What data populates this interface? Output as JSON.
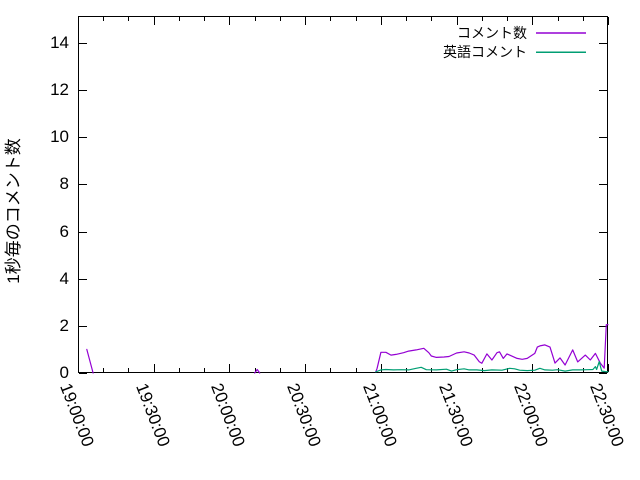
{
  "chart_data": {
    "type": "line",
    "title": "",
    "xlabel": "",
    "ylabel": "1秒毎のコメント数",
    "x_ticks": [
      "19:00:00",
      "19:30:00",
      "20:00:00",
      "20:30:00",
      "21:00:00",
      "21:30:00",
      "22:00:00",
      "22:30:00"
    ],
    "y_ticks": [
      "0",
      "2",
      "4",
      "6",
      "8",
      "10",
      "12",
      "14"
    ],
    "xlim": [
      "19:00:00",
      "22:30:00"
    ],
    "ylim": [
      0,
      15.1
    ],
    "x_minor_tick_minutes": 10,
    "grid": false,
    "legend_position": "top-right",
    "axis_color": "#000000",
    "background_color": "#ffffff",
    "series": [
      {
        "name": "コメント数",
        "color": "#9400d3",
        "segments": [
          [
            [
              "19:03:30",
              1.0
            ],
            [
              "19:06:00",
              0.0
            ]
          ],
          [
            [
              "20:10:00",
              0.0
            ],
            [
              "20:11:00",
              0.15
            ],
            [
              "20:12:00",
              0.0
            ]
          ],
          [
            [
              "20:58:00",
              0.05
            ],
            [
              "20:58:30",
              0.2
            ],
            [
              "21:00:00",
              0.88
            ],
            [
              "21:02:00",
              0.88
            ],
            [
              "21:04:00",
              0.76
            ],
            [
              "21:06:00",
              0.79
            ],
            [
              "21:09:00",
              0.86
            ],
            [
              "21:11:00",
              0.93
            ],
            [
              "21:14:00",
              0.98
            ],
            [
              "21:17:00",
              1.05
            ],
            [
              "21:19:00",
              0.86
            ],
            [
              "21:20:00",
              0.72
            ],
            [
              "21:22:00",
              0.66
            ],
            [
              "21:25:00",
              0.68
            ],
            [
              "21:27:00",
              0.7
            ],
            [
              "21:30:00",
              0.85
            ],
            [
              "21:33:00",
              0.9
            ],
            [
              "21:35:00",
              0.85
            ],
            [
              "21:37:00",
              0.76
            ],
            [
              "21:39:00",
              0.48
            ],
            [
              "21:40:00",
              0.41
            ],
            [
              "21:42:00",
              0.81
            ],
            [
              "21:44:00",
              0.55
            ],
            [
              "21:46:00",
              0.86
            ],
            [
              "21:47:00",
              0.9
            ],
            [
              "21:48:30",
              0.62
            ],
            [
              "21:50:00",
              0.81
            ],
            [
              "21:51:00",
              0.76
            ],
            [
              "21:54:00",
              0.62
            ],
            [
              "21:56:00",
              0.58
            ],
            [
              "21:58:00",
              0.62
            ],
            [
              "22:01:00",
              0.83
            ],
            [
              "22:02:00",
              1.1
            ],
            [
              "22:03:00",
              1.15
            ],
            [
              "22:05:00",
              1.19
            ],
            [
              "22:07:00",
              1.1
            ],
            [
              "22:09:00",
              0.42
            ],
            [
              "22:11:00",
              0.64
            ],
            [
              "22:13:00",
              0.34
            ],
            [
              "22:16:00",
              0.98
            ],
            [
              "22:18:00",
              0.47
            ],
            [
              "22:21:00",
              0.76
            ],
            [
              "22:23:00",
              0.55
            ],
            [
              "22:25:00",
              0.83
            ],
            [
              "22:27:00",
              0.41
            ],
            [
              "22:28:30",
              0.21
            ],
            [
              "22:29:20",
              2.05
            ],
            [
              "22:30:00",
              2.05
            ]
          ]
        ]
      },
      {
        "name": "英語コメント",
        "color": "#009e73",
        "segments": [
          [
            [
              "20:58:00",
              0.05
            ],
            [
              "21:00:00",
              0.13
            ],
            [
              "21:02:00",
              0.15
            ],
            [
              "21:05:00",
              0.13
            ],
            [
              "21:08:00",
              0.14
            ],
            [
              "21:11:00",
              0.13
            ],
            [
              "21:14:00",
              0.2
            ],
            [
              "21:16:00",
              0.24
            ],
            [
              "21:18:00",
              0.14
            ],
            [
              "21:22:00",
              0.13
            ],
            [
              "21:26:00",
              0.16
            ],
            [
              "21:28:00",
              0.08
            ],
            [
              "21:30:00",
              0.14
            ],
            [
              "21:33:00",
              0.18
            ],
            [
              "21:35:00",
              0.13
            ],
            [
              "21:38:00",
              0.13
            ],
            [
              "21:41:00",
              0.1
            ],
            [
              "21:44:00",
              0.13
            ],
            [
              "21:48:00",
              0.12
            ],
            [
              "21:51:00",
              0.2
            ],
            [
              "21:53:00",
              0.18
            ],
            [
              "21:55:00",
              0.12
            ],
            [
              "21:58:00",
              0.1
            ],
            [
              "22:01:00",
              0.12
            ],
            [
              "22:03:00",
              0.2
            ],
            [
              "22:05:00",
              0.13
            ],
            [
              "22:08:00",
              0.12
            ],
            [
              "22:10:00",
              0.14
            ],
            [
              "22:13:00",
              0.08
            ],
            [
              "22:16:00",
              0.13
            ],
            [
              "22:19:00",
              0.13
            ],
            [
              "22:22:00",
              0.14
            ],
            [
              "22:24:00",
              0.15
            ],
            [
              "22:25:00",
              0.27
            ],
            [
              "22:25:30",
              0.15
            ],
            [
              "22:26:30",
              0.48
            ],
            [
              "22:27:30",
              0.08
            ],
            [
              "22:29:00",
              0.06
            ],
            [
              "22:30:00",
              0.05
            ]
          ]
        ]
      }
    ]
  }
}
